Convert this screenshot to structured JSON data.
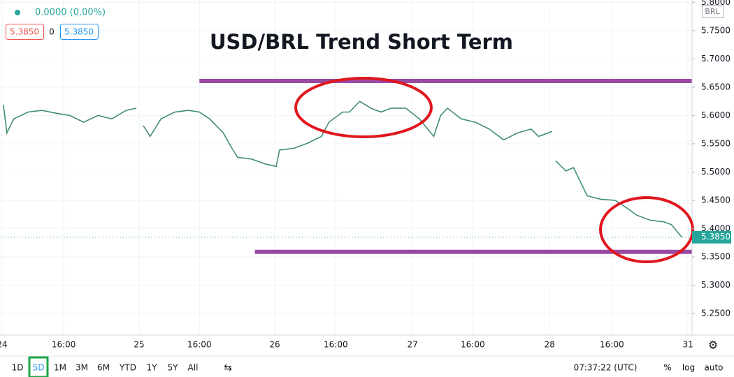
{
  "header": {
    "change": "0.0000 (0.00%)",
    "bid": "5.3850",
    "spread": "0",
    "ask": "5.3850",
    "currency": "BRL"
  },
  "chart_data": {
    "type": "line",
    "title": "USD/BRL Trend Short Term",
    "color": "#3f8f6a",
    "x": [
      0.2,
      0.7,
      1.7,
      3.8,
      5.8,
      7.9,
      9.9,
      11.9,
      14.0,
      16.0,
      18.1,
      19.6,
      20.0,
      20.6,
      21.6,
      23.2,
      25.2,
      27.2,
      28.8,
      30.3,
      32.3,
      33.4,
      34.4,
      36.4,
      38.5,
      40.0,
      40.5,
      42.6,
      44.6,
      46.6,
      47.7,
      49.7,
      50.7,
      52.2,
      53.8,
      55.3,
      56.8,
      58.9,
      60.9,
      63.0,
      64.0,
      65.0,
      67.0,
      69.1,
      71.1,
      73.2,
      75.2,
      77.2,
      78.3,
      80.3,
      80.6,
      80.8,
      82.3,
      83.4,
      84.4,
      85.4,
      87.4,
      89.5,
      91.5,
      92.6,
      94.6,
      96.6,
      97.7,
      99.2
    ],
    "values": [
      5.619,
      5.569,
      5.594,
      5.606,
      5.609,
      5.604,
      5.6,
      5.588,
      5.6,
      5.594,
      5.609,
      5.613,
      null,
      5.582,
      5.563,
      5.594,
      5.606,
      5.609,
      5.606,
      5.594,
      5.569,
      5.545,
      5.526,
      5.523,
      5.514,
      5.51,
      5.539,
      5.542,
      5.551,
      5.563,
      5.588,
      5.606,
      5.606,
      5.625,
      5.613,
      5.606,
      5.613,
      5.613,
      5.594,
      5.563,
      5.6,
      5.613,
      5.594,
      5.588,
      5.576,
      5.557,
      5.569,
      5.576,
      5.563,
      5.572,
      null,
      5.52,
      5.502,
      5.508,
      5.483,
      5.458,
      5.452,
      5.45,
      5.434,
      5.424,
      5.415,
      5.412,
      5.407,
      5.385
    ],
    "xlim": [
      -0.3,
      100.7
    ],
    "xticks": [
      {
        "value": 0,
        "label": "24"
      },
      {
        "value": 9,
        "label": "16:00"
      },
      {
        "value": 20,
        "label": "25"
      },
      {
        "value": 28.8,
        "label": "16:00"
      },
      {
        "value": 39.8,
        "label": "26"
      },
      {
        "value": 48.7,
        "label": "16:00"
      },
      {
        "value": 59.9,
        "label": "27"
      },
      {
        "value": 68.7,
        "label": "16:00"
      },
      {
        "value": 79.9,
        "label": "28"
      },
      {
        "value": 89,
        "label": "16:00"
      },
      {
        "value": 100.1,
        "label": "31"
      }
    ],
    "ylim": [
      5.212,
      5.804
    ],
    "yticks": [
      {
        "value": 5.25,
        "label": "5.2500"
      },
      {
        "value": 5.3,
        "label": "5.3000"
      },
      {
        "value": 5.35,
        "label": "5.3500"
      },
      {
        "value": 5.4,
        "label": "5.4000"
      },
      {
        "value": 5.45,
        "label": "5.4500"
      },
      {
        "value": 5.5,
        "label": "5.5000"
      },
      {
        "value": 5.55,
        "label": "5.5500"
      },
      {
        "value": 5.6,
        "label": "5.6000"
      },
      {
        "value": 5.65,
        "label": "5.6500"
      },
      {
        "value": 5.7,
        "label": "5.7000"
      },
      {
        "value": 5.75,
        "label": "5.7500"
      },
      {
        "value": 5.8,
        "label": "5.8000"
      }
    ],
    "grid": true,
    "levels": [
      {
        "value": 5.661,
        "x_start": 28.8,
        "color": "#9b4aa3"
      },
      {
        "value": 5.359,
        "x_start": 36.9,
        "color": "#9b4aa3"
      }
    ],
    "last_price": {
      "value": 5.385,
      "label": "5.3850",
      "color": "#26a69a"
    }
  },
  "toolbar": {
    "ranges": [
      "1D",
      "5D",
      "1M",
      "3M",
      "6M",
      "YTD",
      "1Y",
      "5Y",
      "All"
    ],
    "active": 1,
    "clock": "07:37:22 (UTC)",
    "options": [
      "%",
      "log",
      "auto"
    ]
  }
}
